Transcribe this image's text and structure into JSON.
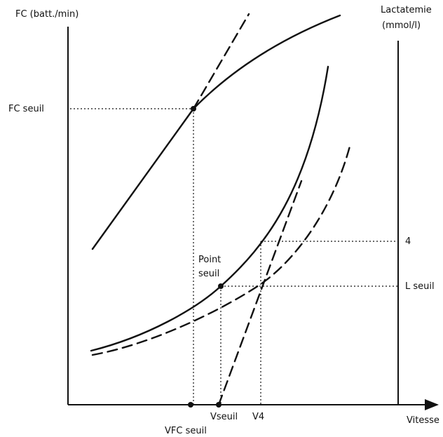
{
  "labels": {
    "y_left_title": "FC (batt./min)",
    "y_right_title_1": "Lactatemie",
    "y_right_title_2": "(mmol/l)",
    "fc_seuil": "FC seuil",
    "point_seuil_1": "Point",
    "point_seuil_2": "seuil",
    "four": "4",
    "l_seuil": "L seuil",
    "vseuil": "Vseuil",
    "v4": "V4",
    "vfc_seuil": "VFC seuil",
    "vitesse": "Vitesse"
  },
  "colors": {
    "ink": "#111111",
    "background": "#ffffff"
  }
}
